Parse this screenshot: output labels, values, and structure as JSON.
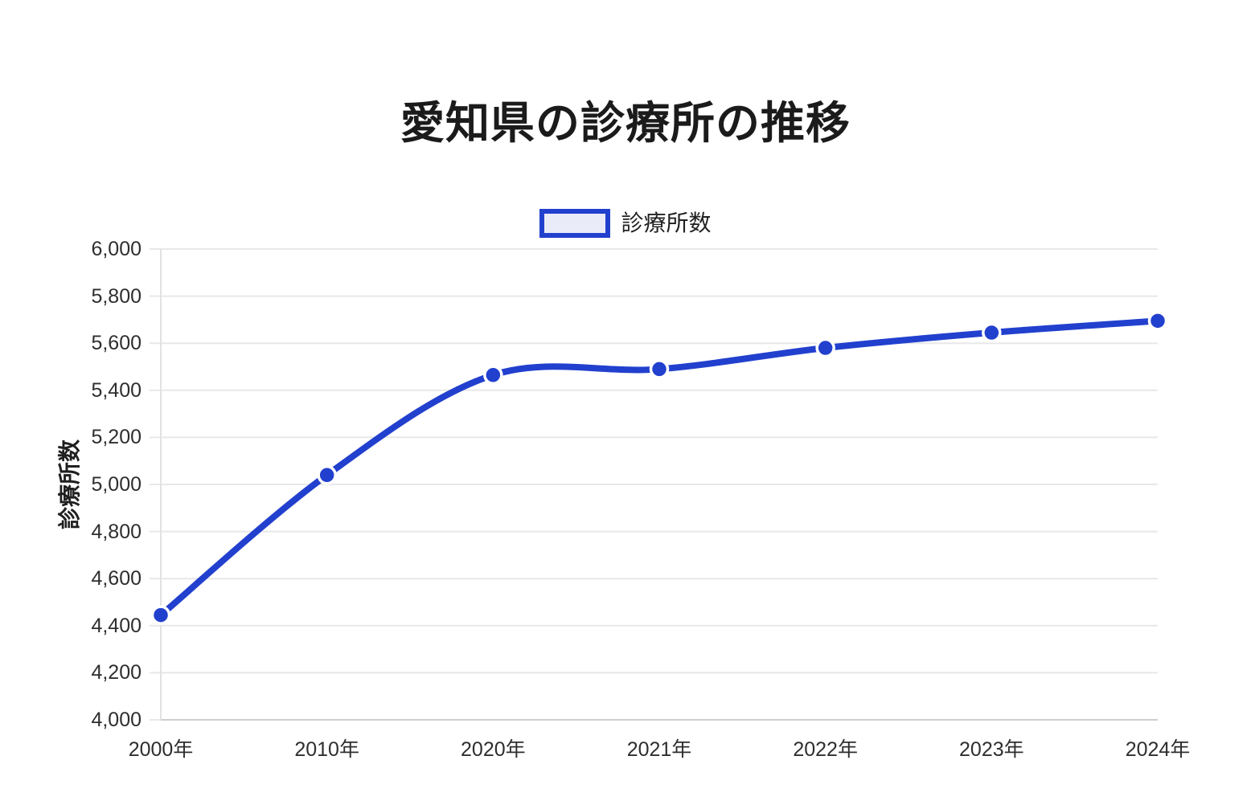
{
  "title": "愛知県の診療所の推移",
  "legend": {
    "label": "診療所数"
  },
  "colors": {
    "line": "#2240ce",
    "point": "#2240ce",
    "point_ring": "#ffffff",
    "legend_fill": "#e9ebf8",
    "grid": "#e8e8e8",
    "baseline": "#cfcfcf",
    "axis": "#e2e2e2",
    "title_text": "#1b1b1b",
    "tick_text": "#2e2e2e"
  },
  "chart_data": {
    "type": "line",
    "title": "愛知県の診療所の推移",
    "xlabel": "",
    "ylabel": "診療所数",
    "categories": [
      "2000年",
      "2010年",
      "2020年",
      "2021年",
      "2022年",
      "2023年",
      "2024年"
    ],
    "series": [
      {
        "name": "診療所数",
        "values": [
          4445,
          5040,
          5465,
          5490,
          5580,
          5645,
          5695
        ]
      }
    ],
    "ylim": [
      4000,
      6000
    ],
    "ytick_step": 200,
    "ytick_labels": [
      "4,000",
      "4,200",
      "4,400",
      "4,600",
      "4,800",
      "5,000",
      "5,200",
      "5,400",
      "5,600",
      "5,800",
      "6,000"
    ],
    "grid": true,
    "smooth": true,
    "legend_position": "top"
  }
}
